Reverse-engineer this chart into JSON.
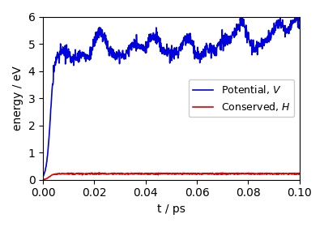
{
  "title": "",
  "xlabel": "t / ps",
  "ylabel": "energy / eV",
  "xlim": [
    0.0,
    0.1
  ],
  "ylim": [
    0.0,
    6.0
  ],
  "xticks": [
    0.0,
    0.02,
    0.04,
    0.06,
    0.08,
    0.1
  ],
  "yticks": [
    0,
    1,
    2,
    3,
    4,
    5,
    6
  ],
  "blue_color": "#0000dd",
  "red_color": "#dd0000",
  "legend_labels": [
    "Potential, $V$",
    "Conserved, $H$"
  ],
  "seed": 17,
  "n_points": 1000,
  "figsize": [
    4.0,
    2.8
  ],
  "dpi": 100
}
